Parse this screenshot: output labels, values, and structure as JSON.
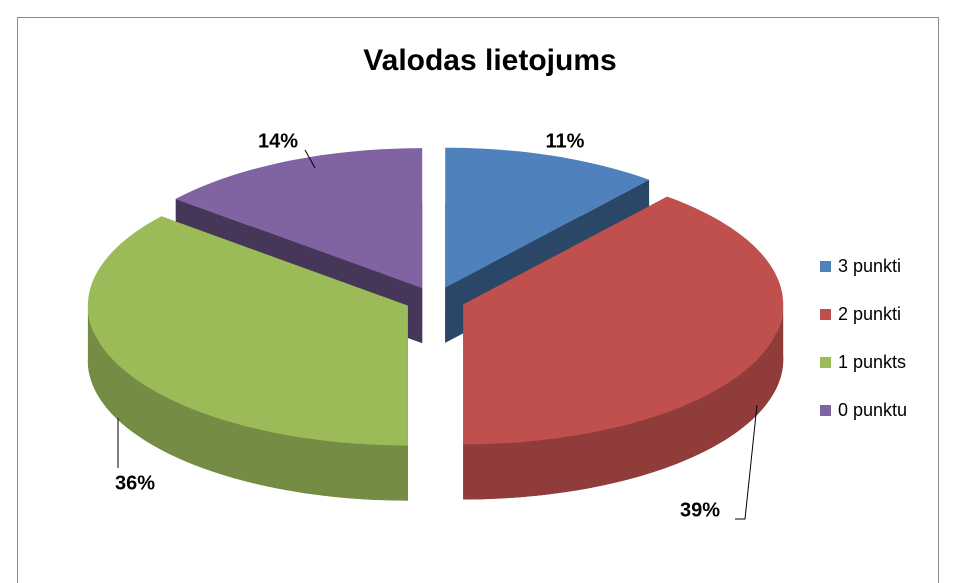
{
  "chart_data": {
    "type": "pie",
    "title": "Valodas lietojums",
    "categories": [
      "3 punkti",
      "2 punkti",
      "1 punkts",
      "0 punktu"
    ],
    "values": [
      11,
      39,
      36,
      14
    ],
    "value_labels": [
      "11%",
      "39%",
      "36%",
      "14%"
    ],
    "colors": [
      "#4f81bd",
      "#c0504d",
      "#9bbb59",
      "#8064a2"
    ],
    "legend": "right"
  }
}
